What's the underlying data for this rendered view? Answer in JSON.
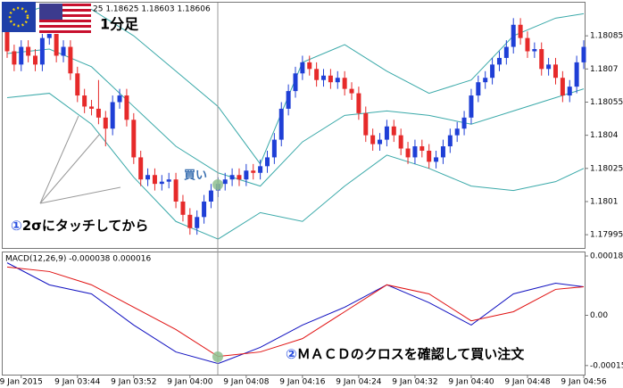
{
  "chart_data": [
    {
      "type": "candlestick",
      "header": "25 1.18625 1.18603 1.18606",
      "title": "1分足",
      "categories": [
        null,
        null,
        "9 Jan 2015",
        null,
        null,
        null,
        null,
        null,
        null,
        null,
        "9 Jan 03:44",
        null,
        null,
        null,
        null,
        null,
        null,
        null,
        "9 Jan 03:52",
        null,
        null,
        null,
        null,
        null,
        null,
        null,
        "9 Jan 04:00",
        null,
        null,
        null,
        null,
        null,
        null,
        null,
        "9 Jan 04:08",
        null,
        null,
        null,
        null,
        null,
        null,
        null,
        "9 Jan 04:16",
        null,
        null,
        null,
        null,
        null,
        null,
        null,
        "9 Jan 04:24",
        null,
        null,
        null,
        null,
        null,
        null,
        null,
        "9 Jan 04:32",
        null,
        null,
        null,
        null,
        null,
        null,
        null,
        "9 Jan 04:40",
        null,
        null,
        null,
        null,
        null,
        null,
        null,
        "9 Jan 04:48",
        null,
        null,
        null,
        null,
        null,
        null,
        null,
        "9 Jan 04:56"
      ],
      "open": [
        1.1809,
        1.18078,
        1.18072,
        1.1808,
        1.18076,
        1.18072,
        1.18084,
        1.18088,
        1.18076,
        1.1808,
        1.18068,
        1.18058,
        1.18053,
        1.18052,
        1.18048,
        1.18043,
        1.18055,
        1.18058,
        1.18047,
        1.1803,
        1.1802,
        1.18022,
        1.18018,
        1.18019,
        1.1802,
        1.1801,
        1.18004,
        1.17998,
        1.18003,
        1.1801,
        1.18015,
        1.18018,
        1.1802,
        1.18022,
        1.1802,
        1.18024,
        1.18023,
        1.18026,
        1.1803,
        1.18038,
        1.18052,
        1.1806,
        1.18068,
        1.18073,
        1.1807,
        1.18065,
        1.18067,
        1.18064,
        1.18066,
        1.18061,
        1.18059,
        1.1805,
        1.1804,
        1.18036,
        1.18038,
        1.18044,
        1.1804,
        1.18034,
        1.1803,
        1.18035,
        1.18033,
        1.18028,
        1.1803,
        1.18035,
        1.1804,
        1.18043,
        1.18048,
        1.18058,
        1.18064,
        1.18066,
        1.18072,
        1.18075,
        1.1808,
        1.1809,
        1.18084,
        1.18078,
        1.18079,
        1.1807,
        1.18072,
        1.18066,
        1.18058,
        1.18062,
        1.18073
      ],
      "high": [
        1.18093,
        1.18081,
        1.18083,
        1.18083,
        1.18079,
        1.18087,
        1.18091,
        1.18091,
        1.18083,
        1.18083,
        1.18071,
        1.18061,
        1.18056,
        1.18065,
        1.18051,
        1.18058,
        1.18061,
        1.18061,
        1.1805,
        1.18033,
        1.18025,
        1.18025,
        1.18022,
        1.18023,
        1.18023,
        1.18013,
        1.18007,
        1.18006,
        1.18013,
        1.18018,
        1.18021,
        1.18023,
        1.18025,
        1.18025,
        1.18027,
        1.18027,
        1.18029,
        1.18033,
        1.18041,
        1.18055,
        1.18063,
        1.18071,
        1.18076,
        1.18076,
        1.18073,
        1.1807,
        1.1807,
        1.18069,
        1.18069,
        1.18064,
        1.18062,
        1.18053,
        1.18043,
        1.18041,
        1.18047,
        1.18047,
        1.18043,
        1.18037,
        1.18038,
        1.18038,
        1.18036,
        1.18033,
        1.18038,
        1.18043,
        1.18046,
        1.18051,
        1.18061,
        1.18067,
        1.18069,
        1.18075,
        1.18078,
        1.18083,
        1.18093,
        1.18093,
        1.18087,
        1.18082,
        1.18082,
        1.18075,
        1.18075,
        1.18069,
        1.18065,
        1.18076,
        1.18083
      ],
      "low": [
        1.18075,
        1.18069,
        1.18069,
        1.18073,
        1.18069,
        1.18069,
        1.18081,
        1.18073,
        1.18073,
        1.18065,
        1.18055,
        1.1805,
        1.18049,
        1.18045,
        1.18035,
        1.1804,
        1.18052,
        1.18044,
        1.18027,
        1.18017,
        1.18017,
        1.18015,
        1.18015,
        1.18016,
        1.18007,
        1.18001,
        1.17995,
        1.17995,
        1.18,
        1.18007,
        1.18012,
        1.18015,
        1.18017,
        1.18017,
        1.18017,
        1.1802,
        1.1802,
        1.18023,
        1.18027,
        1.18035,
        1.18049,
        1.18057,
        1.18065,
        1.18067,
        1.18062,
        1.18062,
        1.18061,
        1.18061,
        1.18058,
        1.18056,
        1.18047,
        1.18037,
        1.18033,
        1.18033,
        1.18035,
        1.18037,
        1.18031,
        1.18027,
        1.18027,
        1.1803,
        1.18025,
        1.18025,
        1.18027,
        1.18032,
        1.18037,
        1.1804,
        1.18045,
        1.18055,
        1.18061,
        1.18063,
        1.18069,
        1.18072,
        1.18077,
        1.18081,
        1.18075,
        1.18075,
        1.18067,
        1.18067,
        1.18063,
        1.18055,
        1.18055,
        1.18059,
        1.1807
      ],
      "close": [
        1.18078,
        1.18072,
        1.1808,
        1.18076,
        1.18072,
        1.18084,
        1.18088,
        1.18076,
        1.1808,
        1.18068,
        1.18058,
        1.18053,
        1.18052,
        1.18048,
        1.18043,
        1.18055,
        1.18058,
        1.18047,
        1.1803,
        1.1802,
        1.18022,
        1.18018,
        1.18019,
        1.1802,
        1.1801,
        1.18004,
        1.17998,
        1.18003,
        1.1801,
        1.18015,
        1.18018,
        1.1802,
        1.18022,
        1.1802,
        1.18024,
        1.18023,
        1.18026,
        1.1803,
        1.18038,
        1.18052,
        1.1806,
        1.18068,
        1.18073,
        1.1807,
        1.18065,
        1.18067,
        1.18064,
        1.18066,
        1.18061,
        1.18059,
        1.1805,
        1.1804,
        1.18036,
        1.18038,
        1.18044,
        1.1804,
        1.18034,
        1.1803,
        1.18035,
        1.18033,
        1.18028,
        1.1803,
        1.18035,
        1.1804,
        1.18043,
        1.18048,
        1.18058,
        1.18064,
        1.18066,
        1.18072,
        1.18075,
        1.1808,
        1.1809,
        1.18084,
        1.18078,
        1.18079,
        1.1807,
        1.18072,
        1.18066,
        1.18058,
        1.18062,
        1.18073,
        1.1808
      ],
      "up_color": "#1f3fd6",
      "down_color": "#e62a2a",
      "ylim": [
        1.17989,
        1.181
      ],
      "yticks": [
        1.18085,
        1.1807,
        1.18055,
        1.1804,
        1.18025,
        1.1801,
        1.17995
      ],
      "bands": {
        "color": "#3aa9a9",
        "x": [
          0,
          6,
          12,
          18,
          24,
          30,
          36,
          42,
          48,
          54,
          60,
          66,
          72,
          78,
          82
        ],
        "series": [
          {
            "values": [
              1.18093,
              1.18099,
              1.18097,
              1.18085,
              1.18069,
              1.18053,
              1.18027,
              1.18073,
              1.18081,
              1.18069,
              1.18059,
              1.18065,
              1.18085,
              1.18093,
              1.18095
            ]
          },
          {
            "values": [
              1.18077,
              1.18079,
              1.18071,
              1.18053,
              1.18035,
              1.18023,
              1.18017,
              1.18037,
              1.18049,
              1.18051,
              1.18049,
              1.18045,
              1.18051,
              1.18057,
              1.18061
            ]
          },
          {
            "values": [
              1.18057,
              1.18059,
              1.18045,
              1.18021,
              1.18001,
              1.17993,
              1.18005,
              1.18001,
              1.18017,
              1.18031,
              1.18025,
              1.18017,
              1.18015,
              1.18019,
              1.18025
            ]
          }
        ]
      }
    },
    {
      "type": "line",
      "label": "MACD(12,26,9) -0.000038 0.000016",
      "x": [
        0,
        6,
        12,
        18,
        24,
        30,
        36,
        42,
        48,
        54,
        60,
        66,
        72,
        78,
        82
      ],
      "series": [
        {
          "color": "#1010c0",
          "values": [
            0.000162,
            9.4e-05,
            6.6e-05,
            -3e-05,
            -0.000113,
            -0.000149,
            -9.9e-05,
            -3e-05,
            2.5e-05,
            9.4e-05,
            3.9e-05,
            -3e-05,
            6.6e-05,
            9.9e-05,
            8.8e-05
          ]
        },
        {
          "color": "#e01010",
          "values": [
            0.000149,
            0.000135,
            9.4e-05,
            2.5e-05,
            -4.4e-05,
            -0.000127,
            -0.000113,
            -7.2e-05,
            1.1e-05,
            9.4e-05,
            6.6e-05,
            -1.7e-05,
            1.1e-05,
            8e-05,
            8.8e-05
          ]
        }
      ],
      "ylim": [
        -0.000183,
        0.000194
      ],
      "yticks": [
        0.000183,
        {
          "value": 0,
          "label": "0.00"
        },
        -0.000155
      ]
    }
  ],
  "annotations": {
    "signal": "買い",
    "step1": {
      "marker": "①",
      "text": "2σにタッチしてから"
    },
    "step2": {
      "marker": "②",
      "text": "ＭＡＣＤのクロスを確認して買い注文"
    }
  }
}
